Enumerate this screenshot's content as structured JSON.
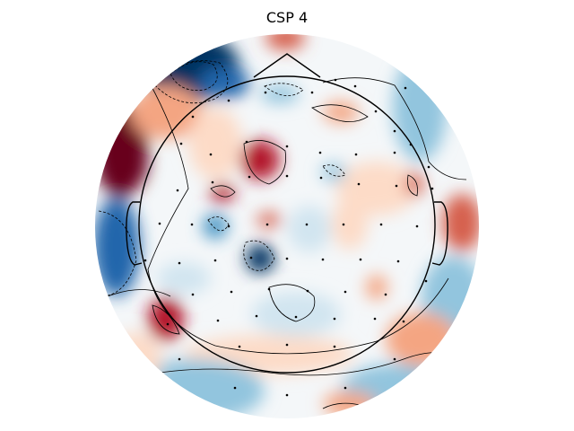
{
  "chart_data": {
    "type": "heatmap",
    "title": "CSP 4",
    "colormap": [
      "#053061",
      "#2166ac",
      "#4393c3",
      "#92c5de",
      "#d1e5f0",
      "#f7f7f7",
      "#fddbc7",
      "#f4a582",
      "#d6604d",
      "#b2182b",
      "#67001f"
    ],
    "sensor_markers": "black dots",
    "contour_style": {
      "positive": "solid",
      "negative": "dashed",
      "zero": "solid"
    },
    "head_outline": true
  }
}
